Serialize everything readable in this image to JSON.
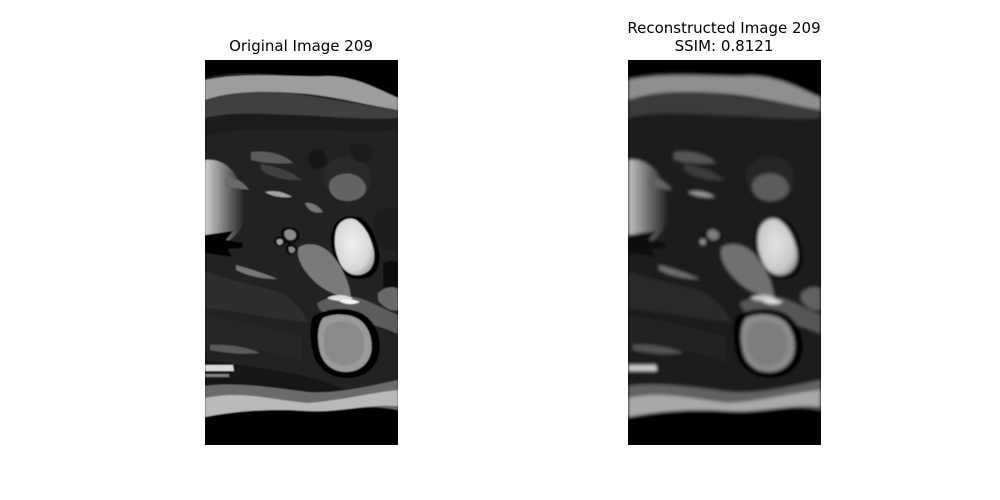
{
  "panels": {
    "original": {
      "title": "Original Image 209"
    },
    "reconstructed": {
      "title": "Reconstructed Image 209",
      "metric": "SSIM: 0.8121"
    }
  },
  "colors": {
    "background": "#ffffff",
    "image_background": "#030303",
    "tissue_bright": "#d8d8d8",
    "tissue_gray": "#8a8a8a",
    "tissue_dark": "#141414"
  }
}
